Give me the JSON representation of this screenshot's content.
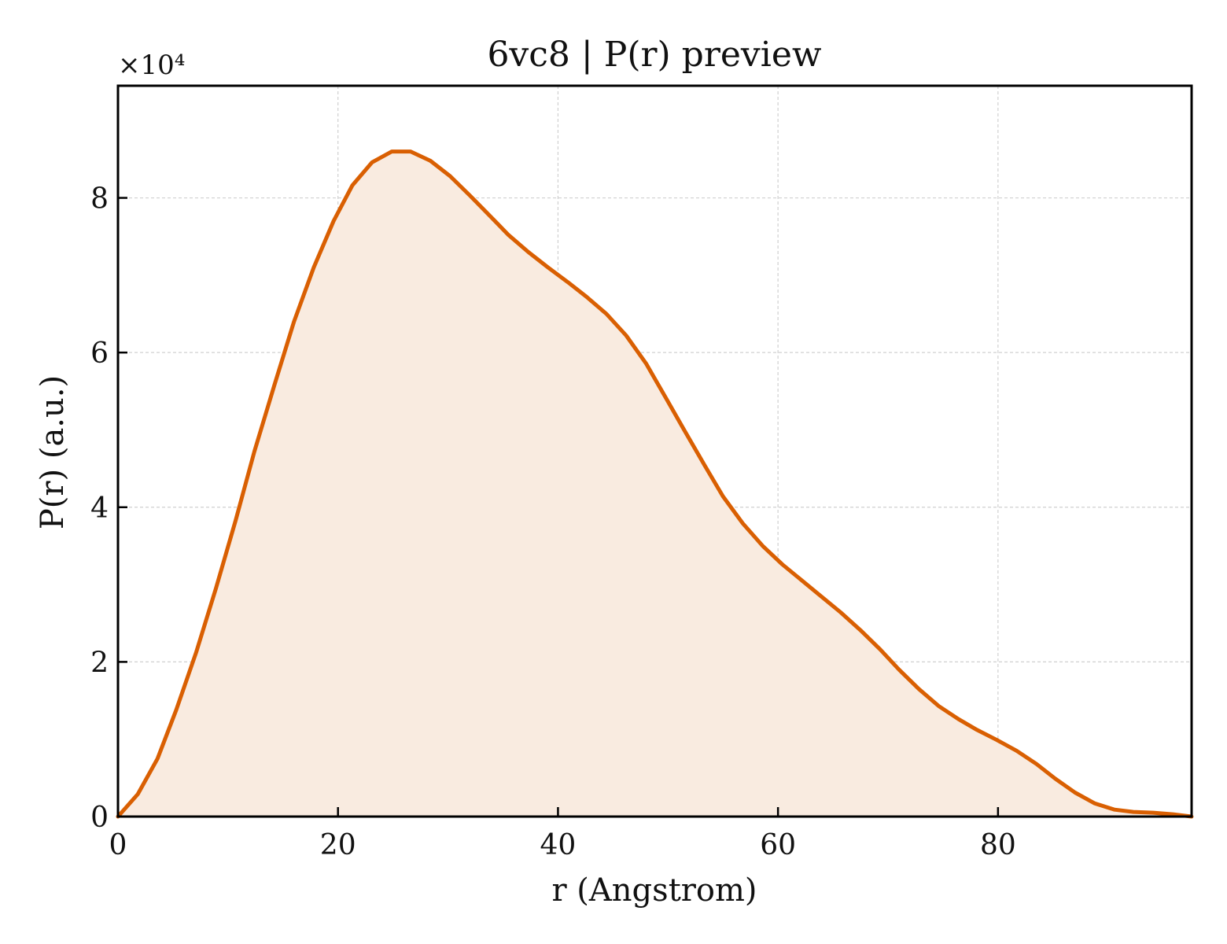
{
  "chart_data": {
    "type": "area",
    "title": "6vc8 | P(r) preview",
    "xlabel": "r (Angstrom)",
    "ylabel": "P(r) (a.u.)",
    "y_offset_label": "×10⁴",
    "y_scale_factor": 10000,
    "xlim": [
      0,
      97.6
    ],
    "ylim": [
      0,
      94500
    ],
    "x_ticks": [
      0,
      20,
      40,
      60,
      80
    ],
    "x_tick_labels": [
      "0",
      "20",
      "40",
      "60",
      "80"
    ],
    "y_ticks": [
      0,
      20000,
      40000,
      60000,
      80000
    ],
    "y_tick_labels": [
      "0",
      "2",
      "4",
      "6",
      "8"
    ],
    "grid": true,
    "colors": {
      "line": "#d95f02",
      "fill": "#f9ebe0"
    },
    "series": [
      {
        "x": [
          0,
          1.8,
          3.6,
          5.3,
          7.1,
          8.9,
          10.7,
          12.4,
          14.2,
          16.0,
          17.8,
          19.6,
          21.3,
          23.1,
          24.9,
          26.6,
          28.4,
          30.2,
          32.0,
          33.8,
          35.5,
          37.3,
          39.1,
          40.9,
          42.6,
          44.4,
          46.2,
          48.0,
          49.7,
          51.5,
          53.3,
          55.0,
          56.8,
          58.6,
          60.4,
          62.2,
          63.9,
          65.7,
          67.5,
          69.3,
          71.0,
          72.8,
          74.6,
          76.4,
          78.1,
          79.9,
          81.7,
          83.5,
          85.2,
          87.0,
          88.8,
          90.6,
          92.3,
          94.1,
          95.9,
          97.6
        ],
        "y": [
          0,
          2900,
          7500,
          13800,
          21200,
          29500,
          38300,
          47200,
          55700,
          64000,
          71000,
          77000,
          81600,
          84600,
          86000,
          86000,
          84800,
          82800,
          80300,
          77700,
          75200,
          73000,
          71000,
          69100,
          67200,
          65000,
          62200,
          58600,
          54400,
          49900,
          45500,
          41400,
          37900,
          35000,
          32600,
          30500,
          28500,
          26400,
          24100,
          21600,
          19000,
          16500,
          14300,
          12600,
          11200,
          9900,
          8500,
          6800,
          4900,
          3100,
          1700,
          900,
          600,
          500,
          300,
          0
        ]
      }
    ]
  }
}
